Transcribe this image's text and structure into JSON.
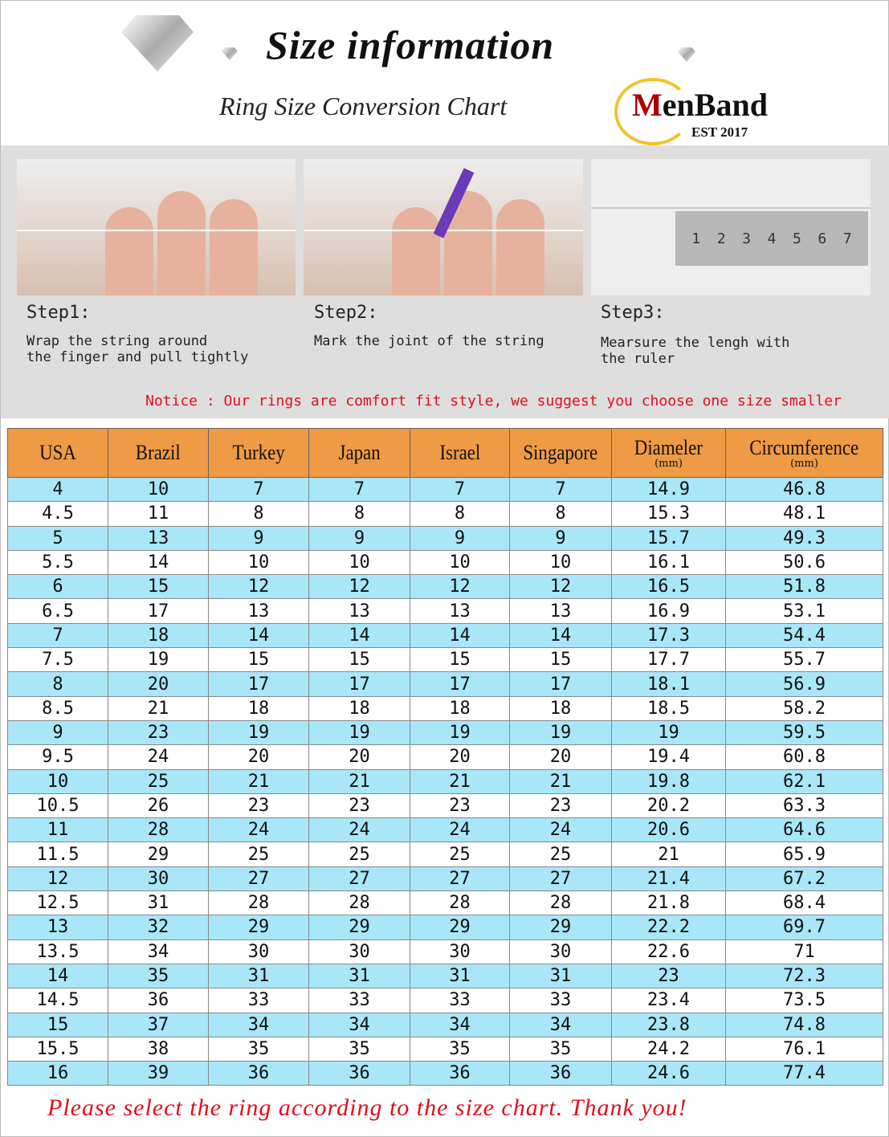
{
  "header": {
    "title": "Size information",
    "subtitle": "Ring Size Conversion Chart",
    "logo_name": "MenBand",
    "logo_name_first": "M",
    "logo_name_rest": "enBand",
    "logo_est": "EST 2017"
  },
  "steps": [
    {
      "label": "Step1:",
      "text": "Wrap the string around\nthe finger and pull tightly"
    },
    {
      "label": "Step2:",
      "text": "Mark the joint of the string"
    },
    {
      "label": "Step3:",
      "text": "Mearsure the lengh with\nthe ruler"
    }
  ],
  "ruler_numbers": [
    "1",
    "2",
    "3",
    "4",
    "5",
    "6",
    "7"
  ],
  "notice": "Notice : Our rings are comfort fit style, we suggest you choose one size smaller",
  "table": {
    "header_color": "#ef9a45",
    "alt_row_color": "#a9e6f8",
    "columns": [
      {
        "label": "USA"
      },
      {
        "label": "Brazil"
      },
      {
        "label": "Turkey"
      },
      {
        "label": "Japan"
      },
      {
        "label": "Israel"
      },
      {
        "label": "Singapore"
      },
      {
        "label": "Diameler",
        "unit": "(mm)"
      },
      {
        "label": "Circumference",
        "unit": "(mm)"
      }
    ],
    "rows": [
      [
        "4",
        "10",
        "7",
        "7",
        "7",
        "7",
        "14.9",
        "46.8"
      ],
      [
        "4.5",
        "11",
        "8",
        "8",
        "8",
        "8",
        "15.3",
        "48.1"
      ],
      [
        "5",
        "13",
        "9",
        "9",
        "9",
        "9",
        "15.7",
        "49.3"
      ],
      [
        "5.5",
        "14",
        "10",
        "10",
        "10",
        "10",
        "16.1",
        "50.6"
      ],
      [
        "6",
        "15",
        "12",
        "12",
        "12",
        "12",
        "16.5",
        "51.8"
      ],
      [
        "6.5",
        "17",
        "13",
        "13",
        "13",
        "13",
        "16.9",
        "53.1"
      ],
      [
        "7",
        "18",
        "14",
        "14",
        "14",
        "14",
        "17.3",
        "54.4"
      ],
      [
        "7.5",
        "19",
        "15",
        "15",
        "15",
        "15",
        "17.7",
        "55.7"
      ],
      [
        "8",
        "20",
        "17",
        "17",
        "17",
        "17",
        "18.1",
        "56.9"
      ],
      [
        "8.5",
        "21",
        "18",
        "18",
        "18",
        "18",
        "18.5",
        "58.2"
      ],
      [
        "9",
        "23",
        "19",
        "19",
        "19",
        "19",
        "19",
        "59.5"
      ],
      [
        "9.5",
        "24",
        "20",
        "20",
        "20",
        "20",
        "19.4",
        "60.8"
      ],
      [
        "10",
        "25",
        "21",
        "21",
        "21",
        "21",
        "19.8",
        "62.1"
      ],
      [
        "10.5",
        "26",
        "23",
        "23",
        "23",
        "23",
        "20.2",
        "63.3"
      ],
      [
        "11",
        "28",
        "24",
        "24",
        "24",
        "24",
        "20.6",
        "64.6"
      ],
      [
        "11.5",
        "29",
        "25",
        "25",
        "25",
        "25",
        "21",
        "65.9"
      ],
      [
        "12",
        "30",
        "27",
        "27",
        "27",
        "27",
        "21.4",
        "67.2"
      ],
      [
        "12.5",
        "31",
        "28",
        "28",
        "28",
        "28",
        "21.8",
        "68.4"
      ],
      [
        "13",
        "32",
        "29",
        "29",
        "29",
        "29",
        "22.2",
        "69.7"
      ],
      [
        "13.5",
        "34",
        "30",
        "30",
        "30",
        "30",
        "22.6",
        "71"
      ],
      [
        "14",
        "35",
        "31",
        "31",
        "31",
        "31",
        "23",
        "72.3"
      ],
      [
        "14.5",
        "36",
        "33",
        "33",
        "33",
        "33",
        "23.4",
        "73.5"
      ],
      [
        "15",
        "37",
        "34",
        "34",
        "34",
        "34",
        "23.8",
        "74.8"
      ],
      [
        "15.5",
        "38",
        "35",
        "35",
        "35",
        "35",
        "24.2",
        "76.1"
      ],
      [
        "16",
        "39",
        "36",
        "36",
        "36",
        "36",
        "24.6",
        "77.4"
      ]
    ]
  },
  "footer": "Please select the ring according to the size chart.  Thank you!"
}
